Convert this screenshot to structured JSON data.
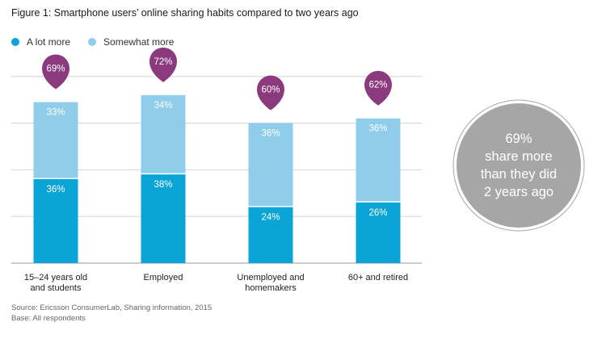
{
  "title": "Figure 1: Smartphone users’ online sharing habits compared to two years ago",
  "legend": [
    {
      "label": "A lot more",
      "color": "#0aa4d6"
    },
    {
      "label": "Somewhat more",
      "color": "#8fcdea"
    }
  ],
  "chart_data": {
    "type": "bar",
    "stacked": true,
    "categories": [
      [
        "15–24 years old",
        "and students"
      ],
      [
        "Employed"
      ],
      [
        "Unemployed and",
        "homemakers"
      ],
      [
        "60+ and retired"
      ]
    ],
    "series": [
      {
        "name": "A lot more",
        "values": [
          36,
          38,
          24,
          26
        ],
        "labels": [
          "36%",
          "38%",
          "24%",
          "26%"
        ],
        "color": "#0aa4d6"
      },
      {
        "name": "Somewhat more",
        "values": [
          33,
          34,
          36,
          36
        ],
        "labels": [
          "33%",
          "34%",
          "36%",
          "36%"
        ],
        "color": "#8fcdea"
      }
    ],
    "totals": [
      "69%",
      "72%",
      "60%",
      "62%"
    ],
    "total_marker_color": "#8b3a7e",
    "ylim": [
      0,
      92
    ],
    "grid": true,
    "legend_position": "top-left"
  },
  "callout": {
    "lines": [
      "69%",
      "share more",
      "than they did",
      "2 years ago"
    ],
    "color": "#a6a6a6"
  },
  "source": {
    "line1": "Source: Ericsson ConsumerLab, Sharing information, 2015",
    "line2": "Base: All respondents"
  }
}
